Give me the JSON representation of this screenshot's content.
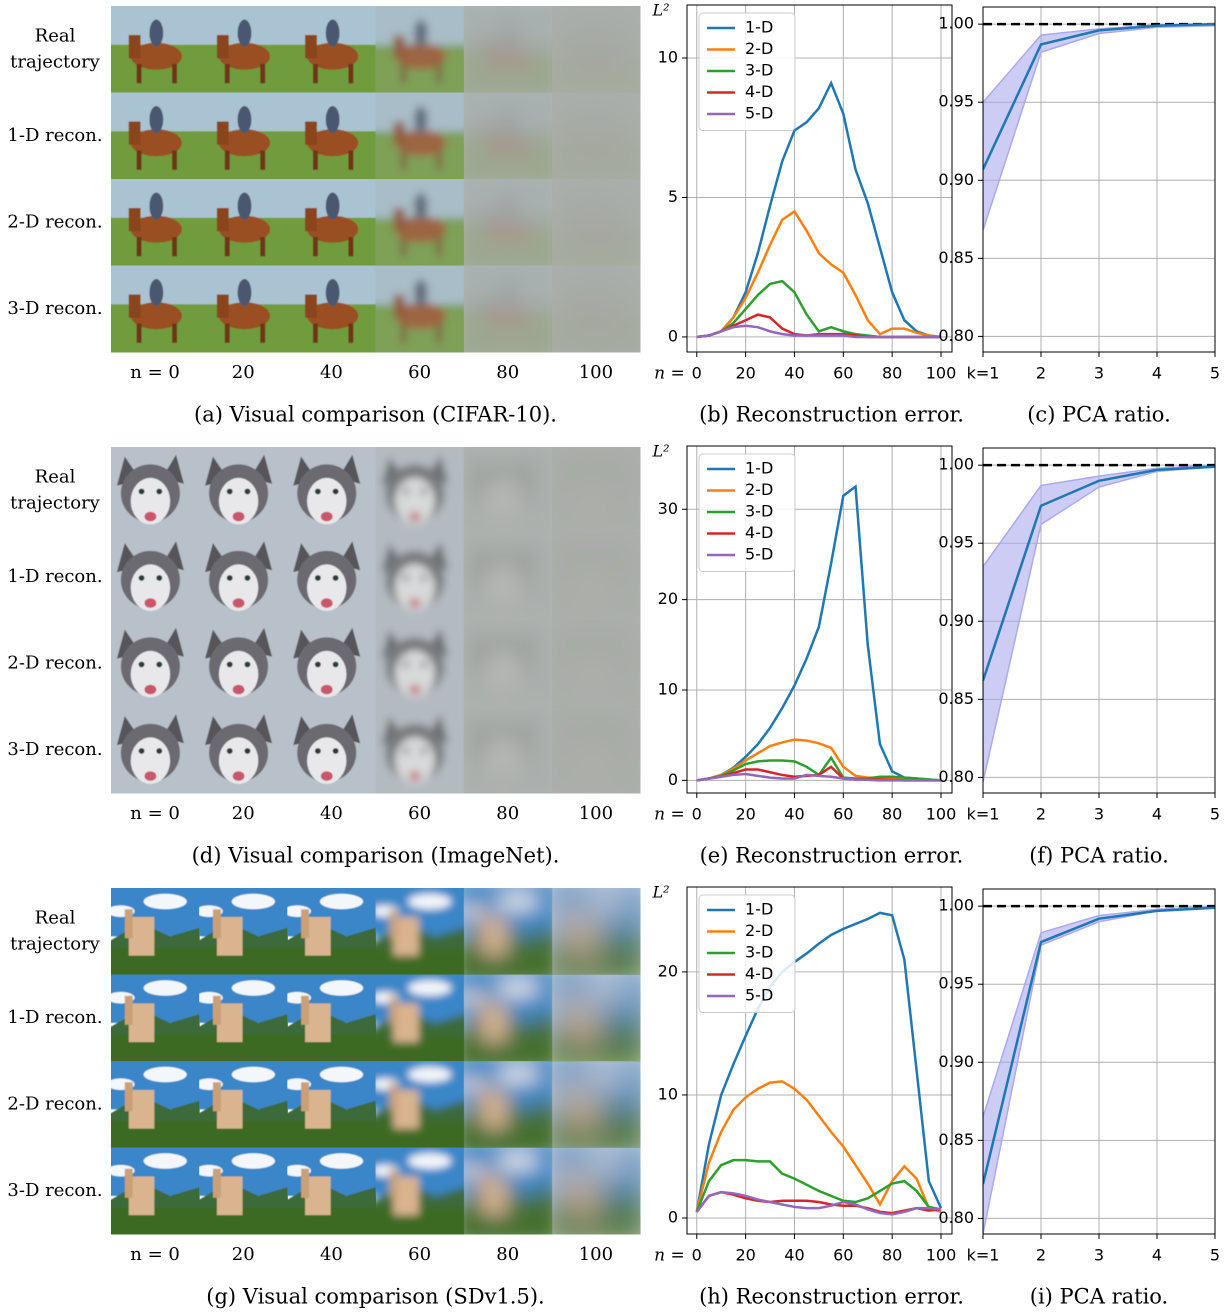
{
  "image_panels": [
    {
      "row_labels": [
        "Real trajectory",
        "1-D recon.",
        "2-D recon.",
        "3-D recon."
      ],
      "column_labels": [
        "n = 0",
        "20",
        "40",
        "60",
        "80",
        "100"
      ],
      "caption": "(a) Visual comparison (CIFAR-10)."
    },
    {
      "row_labels": [
        "Real trajectory",
        "1-D recon.",
        "2-D recon.",
        "3-D recon."
      ],
      "column_labels": [
        "n = 0",
        "20",
        "40",
        "60",
        "80",
        "100"
      ],
      "caption": "(d) Visual comparison (ImageNet)."
    },
    {
      "row_labels": [
        "Real trajectory",
        "1-D recon.",
        "2-D recon.",
        "3-D recon."
      ],
      "column_labels": [
        "n = 0",
        "20",
        "40",
        "60",
        "80",
        "100"
      ],
      "caption": "(g) Visual comparison (SDv1.5)."
    }
  ],
  "chart_data": [
    {
      "type": "line",
      "caption": "(b) Reconstruction error.",
      "ylabel": "L²",
      "xlabel": "n =",
      "legend": "upper left",
      "grid": true,
      "ytick_color": "#ff0000",
      "x": [
        0,
        5,
        10,
        15,
        20,
        25,
        30,
        35,
        40,
        45,
        50,
        55,
        60,
        65,
        70,
        75,
        80,
        85,
        90,
        95,
        100
      ],
      "xlim": [
        -4,
        104.5
      ],
      "ylim": [
        -0.54,
        11.9
      ],
      "xticks": [
        0,
        20,
        40,
        60,
        80,
        100
      ],
      "yticks": [
        0,
        5,
        10
      ],
      "series": [
        {
          "name": "1-D",
          "color": "#1f77b4",
          "values": [
            0,
            0.05,
            0.2,
            0.7,
            1.6,
            3,
            4.7,
            6.3,
            7.4,
            7.7,
            8.2,
            9.1,
            8.0,
            6.0,
            4.8,
            3.2,
            1.6,
            0.6,
            0.2,
            0.05,
            0
          ]
        },
        {
          "name": "2-D",
          "color": "#ff7f0e",
          "values": [
            0,
            0.05,
            0.2,
            0.7,
            1.4,
            2.3,
            3.3,
            4.2,
            4.5,
            3.8,
            3.0,
            2.6,
            2.3,
            1.5,
            0.6,
            0.1,
            0.3,
            0.3,
            0.15,
            0.05,
            0
          ]
        },
        {
          "name": "3-D",
          "color": "#2ca02c",
          "values": [
            0,
            0.05,
            0.2,
            0.5,
            1.0,
            1.5,
            1.9,
            2.0,
            1.6,
            0.8,
            0.2,
            0.35,
            0.2,
            0.1,
            0.05,
            0,
            0,
            0,
            0,
            0,
            0
          ]
        },
        {
          "name": "4-D",
          "color": "#d62728",
          "values": [
            0,
            0.05,
            0.2,
            0.4,
            0.6,
            0.8,
            0.7,
            0.3,
            0.1,
            0.05,
            0.1,
            0.1,
            0.1,
            0.05,
            0,
            0,
            0,
            0,
            0,
            0,
            0
          ]
        },
        {
          "name": "5-D",
          "color": "#9467bd",
          "values": [
            0,
            0.05,
            0.2,
            0.35,
            0.4,
            0.35,
            0.2,
            0.1,
            0.05,
            0.05,
            0.05,
            0.05,
            0.05,
            0,
            0,
            0,
            0,
            0,
            0,
            0,
            0
          ]
        }
      ]
    },
    {
      "type": "band",
      "caption": "(c) PCA ratio.",
      "grid": true,
      "hline": 1.0,
      "color": "#1f77b4",
      "band_color": "#aaaaee",
      "x": [
        1,
        2,
        3,
        4,
        5
      ],
      "xlim": [
        1,
        5
      ],
      "ylim": [
        0.79,
        1.011
      ],
      "xticks": [
        {
          "value": 1,
          "label": "k=1"
        },
        2,
        3,
        4,
        5
      ],
      "yticks": [
        {
          "value": 0.8,
          "label": "0.80"
        },
        {
          "value": 0.85,
          "label": "0.85"
        },
        {
          "value": 0.9,
          "label": "0.90"
        },
        {
          "value": 0.95,
          "label": "0.95"
        },
        {
          "value": 1,
          "label": "1.00"
        }
      ],
      "values": [
        0.907,
        0.987,
        0.996,
        0.999,
        1.0
      ],
      "lower": [
        0.868,
        0.982,
        0.994,
        0.998,
        0.999
      ],
      "upper": [
        0.95,
        0.993,
        0.997,
        0.9995,
        1.0
      ]
    },
    {
      "type": "line",
      "caption": "(e) Reconstruction error.",
      "ylabel": "L²",
      "xlabel": "n =",
      "legend": "upper left",
      "grid": true,
      "ytick_color": "#ff0000",
      "x": [
        0,
        5,
        10,
        15,
        20,
        25,
        30,
        35,
        40,
        45,
        50,
        55,
        60,
        65,
        70,
        75,
        80,
        85,
        90,
        95,
        100
      ],
      "xlim": [
        -4,
        104.5
      ],
      "ylim": [
        -1.4,
        37
      ],
      "xticks": [
        0,
        20,
        40,
        60,
        80,
        100
      ],
      "yticks": [
        0,
        10,
        20,
        30
      ],
      "series": [
        {
          "name": "1-D",
          "color": "#1f77b4",
          "values": [
            0,
            0.2,
            0.6,
            1.4,
            2.6,
            4,
            5.8,
            8,
            10.5,
            13.5,
            17,
            24,
            31.5,
            32.5,
            15,
            4,
            1,
            0.3,
            0.2,
            0.1,
            0
          ]
        },
        {
          "name": "2-D",
          "color": "#ff7f0e",
          "values": [
            0,
            0.2,
            0.6,
            1.3,
            2.2,
            3,
            3.8,
            4.2,
            4.5,
            4.4,
            4.1,
            3.6,
            1.5,
            0.5,
            0.3,
            0.3,
            0.3,
            0.2,
            0.1,
            0.05,
            0
          ]
        },
        {
          "name": "3-D",
          "color": "#2ca02c",
          "values": [
            0,
            0.2,
            0.5,
            1.1,
            1.8,
            2.1,
            2.2,
            2.2,
            2.1,
            1.5,
            0.6,
            2.5,
            0.3,
            0.2,
            0.2,
            0.4,
            0.4,
            0.3,
            0.2,
            0.1,
            0
          ]
        },
        {
          "name": "4-D",
          "color": "#d62728",
          "values": [
            0,
            0.2,
            0.4,
            0.8,
            1.2,
            1.2,
            0.9,
            0.6,
            0.4,
            0.5,
            0.6,
            1.5,
            0.2,
            0.1,
            0.1,
            0.1,
            0.05,
            0,
            0,
            0,
            0
          ]
        },
        {
          "name": "5-D",
          "color": "#9467bd",
          "values": [
            0,
            0.2,
            0.4,
            0.6,
            0.7,
            0.5,
            0.3,
            0.2,
            0.2,
            0.6,
            0.5,
            0.4,
            0.2,
            0.1,
            0.05,
            0,
            0,
            0,
            0,
            0,
            0
          ]
        }
      ]
    },
    {
      "type": "band",
      "caption": "(f) PCA ratio.",
      "grid": true,
      "hline": 1.0,
      "color": "#1f77b4",
      "band_color": "#aaaaee",
      "x": [
        1,
        2,
        3,
        4,
        5
      ],
      "xlim": [
        1,
        5
      ],
      "ylim": [
        0.79,
        1.011
      ],
      "xticks": [
        {
          "value": 1,
          "label": "k=1"
        },
        2,
        3,
        4,
        5
      ],
      "yticks": [
        {
          "value": 0.8,
          "label": "0.80"
        },
        {
          "value": 0.85,
          "label": "0.85"
        },
        {
          "value": 0.9,
          "label": "0.90"
        },
        {
          "value": 0.95,
          "label": "0.95"
        },
        {
          "value": 1,
          "label": "1.00"
        }
      ],
      "values": [
        0.862,
        0.974,
        0.99,
        0.997,
        0.999
      ],
      "lower": [
        0.797,
        0.962,
        0.986,
        0.996,
        0.999
      ],
      "upper": [
        0.935,
        0.987,
        0.993,
        0.998,
        1.0
      ]
    },
    {
      "type": "line",
      "caption": "(h) Reconstruction error.",
      "ylabel": "L²",
      "xlabel": "n =",
      "legend": "upper left",
      "grid": true,
      "ytick_color": "#ff0000",
      "x": [
        0,
        5,
        10,
        15,
        20,
        25,
        30,
        35,
        40,
        45,
        50,
        55,
        60,
        65,
        70,
        75,
        80,
        85,
        90,
        95,
        100
      ],
      "xlim": [
        -4,
        104.5
      ],
      "ylim": [
        -1.3,
        26.9
      ],
      "xticks": [
        0,
        20,
        40,
        60,
        80,
        100
      ],
      "yticks": [
        0,
        10,
        20
      ],
      "series": [
        {
          "name": "1-D",
          "color": "#1f77b4",
          "values": [
            0.5,
            6,
            10,
            12.5,
            14.8,
            17,
            18.8,
            20,
            20.8,
            21.5,
            22.3,
            23,
            23.5,
            23.9,
            24.3,
            24.8,
            24.6,
            21,
            12,
            3,
            0.8
          ]
        },
        {
          "name": "2-D",
          "color": "#ff7f0e",
          "values": [
            0.5,
            4.5,
            7,
            8.8,
            9.8,
            10.5,
            11,
            11.1,
            10.5,
            9.6,
            8.3,
            7,
            5.8,
            4.3,
            2.8,
            1.1,
            3,
            4.2,
            3.2,
            0.8,
            0.5
          ]
        },
        {
          "name": "3-D",
          "color": "#2ca02c",
          "values": [
            0.5,
            3,
            4.3,
            4.7,
            4.7,
            4.6,
            4.6,
            3.6,
            3.2,
            2.7,
            2.2,
            1.8,
            1.4,
            1.3,
            1.6,
            2.2,
            2.8,
            3,
            2.2,
            0.9,
            0.7
          ]
        },
        {
          "name": "4-D",
          "color": "#d62728",
          "values": [
            0.5,
            1.8,
            2.1,
            1.9,
            1.6,
            1.4,
            1.3,
            1.4,
            1.4,
            1.4,
            1.3,
            1.1,
            1.0,
            1.0,
            0.8,
            0.5,
            0.4,
            0.6,
            0.8,
            0.6,
            0.7
          ]
        },
        {
          "name": "5-D",
          "color": "#9467bd",
          "values": [
            0.5,
            1.8,
            2.1,
            2.0,
            1.8,
            1.5,
            1.3,
            1.1,
            0.9,
            0.8,
            0.8,
            1.0,
            1.3,
            1.1,
            0.7,
            0.4,
            0.3,
            0.5,
            0.8,
            0.8,
            0.7
          ]
        }
      ]
    },
    {
      "type": "band",
      "caption": "(i) PCA ratio.",
      "grid": true,
      "hline": 1.0,
      "color": "#1f77b4",
      "band_color": "#aaaaee",
      "x": [
        1,
        2,
        3,
        4,
        5
      ],
      "xlim": [
        1,
        5
      ],
      "ylim": [
        0.79,
        1.011
      ],
      "xticks": [
        {
          "value": 1,
          "label": "k=1"
        },
        2,
        3,
        4,
        5
      ],
      "yticks": [
        {
          "value": 0.8,
          "label": "0.80"
        },
        {
          "value": 0.85,
          "label": "0.85"
        },
        {
          "value": 0.9,
          "label": "0.90"
        },
        {
          "value": 0.95,
          "label": "0.95"
        },
        {
          "value": 1,
          "label": "1.00"
        }
      ],
      "values": [
        0.822,
        0.977,
        0.992,
        0.997,
        0.999
      ],
      "lower": [
        0.79,
        0.975,
        0.99,
        0.997,
        0.999
      ],
      "upper": [
        0.865,
        0.983,
        0.994,
        0.998,
        1.0
      ]
    }
  ]
}
